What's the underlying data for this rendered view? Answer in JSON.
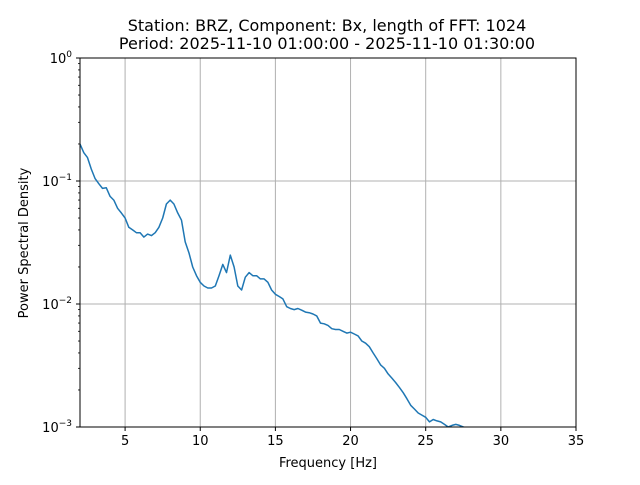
{
  "chart_data": {
    "type": "line",
    "title": "Station: BRZ, Component: Bx, length of FFT: 1024",
    "subtitle": "Period: 2025-11-10 01:00:00 - 2025-11-10 01:30:00",
    "xlabel": "Frequency [Hz]",
    "ylabel": "Power Spectral Density",
    "xlim": [
      2,
      35
    ],
    "ylim": [
      0.001,
      1
    ],
    "yscale": "log",
    "grid": true,
    "x_ticks": [
      5,
      10,
      15,
      20,
      25,
      30,
      35
    ],
    "x_tick_labels": [
      "5",
      "10",
      "15",
      "20",
      "25",
      "30",
      "35"
    ],
    "y_ticks": [
      0.001,
      0.01,
      0.1,
      1
    ],
    "y_tick_labels": [
      {
        "base": "10",
        "exp": "−3"
      },
      {
        "base": "10",
        "exp": "−2"
      },
      {
        "base": "10",
        "exp": "−1"
      },
      {
        "base": "10",
        "exp": "0"
      }
    ],
    "series": [
      {
        "color": "#1f77b4",
        "x": [
          2.0,
          2.25,
          2.5,
          2.75,
          3.0,
          3.25,
          3.5,
          3.75,
          4.0,
          4.25,
          4.5,
          4.75,
          5.0,
          5.25,
          5.5,
          5.75,
          6.0,
          6.25,
          6.5,
          6.75,
          7.0,
          7.25,
          7.5,
          7.75,
          8.0,
          8.25,
          8.5,
          8.75,
          9.0,
          9.25,
          9.5,
          9.75,
          10.0,
          10.25,
          10.5,
          10.75,
          11.0,
          11.25,
          11.5,
          11.75,
          12.0,
          12.25,
          12.5,
          12.75,
          13.0,
          13.25,
          13.5,
          13.75,
          14.0,
          14.25,
          14.5,
          14.75,
          15.0,
          15.25,
          15.5,
          15.75,
          16.0,
          16.25,
          16.5,
          16.75,
          17.0,
          17.25,
          17.5,
          17.75,
          18.0,
          18.25,
          18.5,
          18.75,
          19.0,
          19.25,
          19.5,
          19.75,
          20.0,
          20.25,
          20.5,
          20.75,
          21.0,
          21.25,
          21.5,
          21.75,
          22.0,
          22.25,
          22.5,
          22.75,
          23.0,
          23.25,
          23.5,
          23.75,
          24.0,
          24.25,
          24.5,
          24.75,
          25.0,
          25.25,
          25.5,
          25.75,
          26.0,
          26.25,
          26.5,
          26.75,
          27.0,
          27.25,
          27.5,
          27.75
        ],
        "y": [
          0.2,
          0.17,
          0.155,
          0.125,
          0.105,
          0.095,
          0.087,
          0.088,
          0.075,
          0.07,
          0.06,
          0.055,
          0.05,
          0.042,
          0.04,
          0.038,
          0.038,
          0.035,
          0.037,
          0.036,
          0.038,
          0.042,
          0.05,
          0.065,
          0.07,
          0.065,
          0.055,
          0.048,
          0.032,
          0.026,
          0.02,
          0.017,
          0.015,
          0.014,
          0.0135,
          0.0135,
          0.014,
          0.017,
          0.021,
          0.018,
          0.025,
          0.02,
          0.014,
          0.013,
          0.0165,
          0.018,
          0.017,
          0.017,
          0.016,
          0.016,
          0.015,
          0.013,
          0.012,
          0.0115,
          0.011,
          0.0095,
          0.0092,
          0.009,
          0.0092,
          0.0089,
          0.0086,
          0.0085,
          0.0083,
          0.008,
          0.007,
          0.0069,
          0.0067,
          0.0063,
          0.0062,
          0.0062,
          0.006,
          0.0058,
          0.0059,
          0.0057,
          0.0055,
          0.005,
          0.0048,
          0.0045,
          0.004,
          0.0036,
          0.0032,
          0.003,
          0.0027,
          0.0025,
          0.0023,
          0.0021,
          0.0019,
          0.0017,
          0.0015,
          0.0014,
          0.0013,
          0.00125,
          0.0012,
          0.0011,
          0.00115,
          0.00112,
          0.0011,
          0.00105,
          0.001,
          0.00103,
          0.00105,
          0.00103,
          0.001,
          0.00098
        ]
      }
    ]
  }
}
